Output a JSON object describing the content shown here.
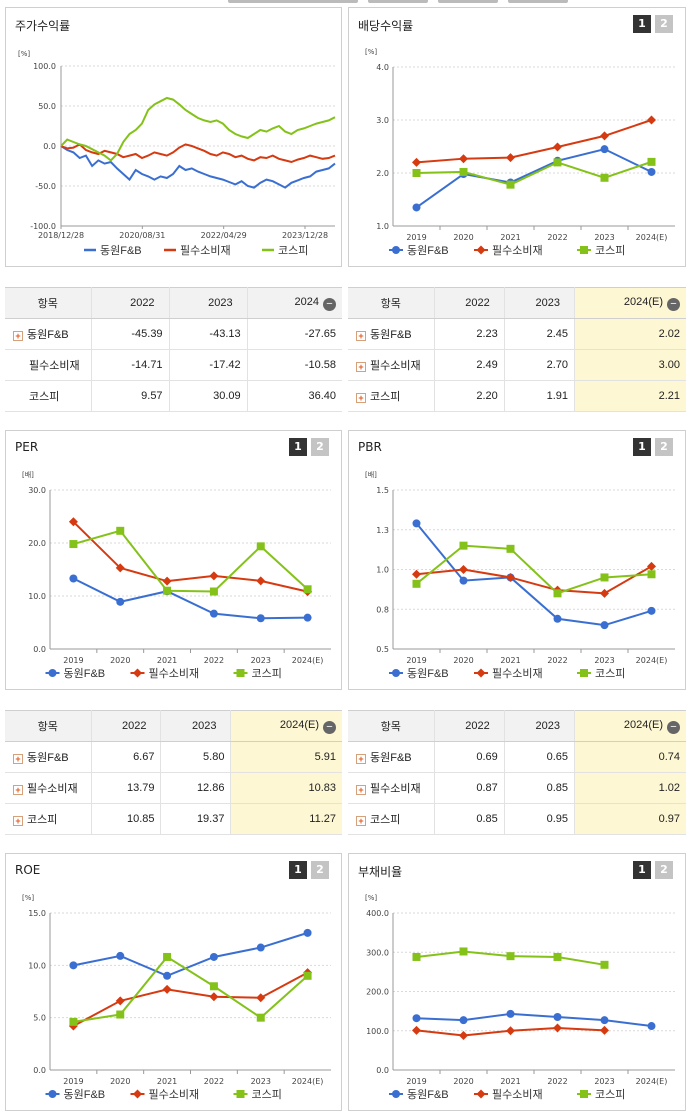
{
  "legend": {
    "company": "동원F&B",
    "industry": "필수소비재",
    "index": "코스피"
  },
  "colors": {
    "company": "#3a6fd1",
    "industry": "#d63a10",
    "index": "#84c21a"
  },
  "buttons": {
    "b1": "1",
    "b2": "2"
  },
  "table_header_name": "항목",
  "return_panel": {
    "title": "주가수익률",
    "table": {
      "columns": [
        "2022",
        "2023",
        "2024"
      ],
      "rows": [
        {
          "name": "동원F&B",
          "values": [
            "-45.39",
            "-43.13",
            "-27.65"
          ]
        },
        {
          "name": "필수소비재",
          "values": [
            "-14.71",
            "-17.42",
            "-10.58"
          ]
        },
        {
          "name": "코스피",
          "values": [
            "9.57",
            "30.09",
            "36.40"
          ]
        }
      ]
    }
  },
  "dividend_panel": {
    "title": "배당수익률",
    "table": {
      "columns": [
        "2022",
        "2023",
        "2024(E)"
      ],
      "rows": [
        {
          "name": "동원F&B",
          "values": [
            "2.23",
            "2.45",
            "2.02"
          ]
        },
        {
          "name": "필수소비재",
          "values": [
            "2.49",
            "2.70",
            "3.00"
          ]
        },
        {
          "name": "코스피",
          "values": [
            "2.20",
            "1.91",
            "2.21"
          ]
        }
      ]
    }
  },
  "per_panel": {
    "title": "PER",
    "table": {
      "columns": [
        "2022",
        "2023",
        "2024(E)"
      ],
      "rows": [
        {
          "name": "동원F&B",
          "values": [
            "6.67",
            "5.80",
            "5.91"
          ]
        },
        {
          "name": "필수소비재",
          "values": [
            "13.79",
            "12.86",
            "10.83"
          ]
        },
        {
          "name": "코스피",
          "values": [
            "10.85",
            "19.37",
            "11.27"
          ]
        }
      ]
    }
  },
  "pbr_panel": {
    "title": "PBR",
    "table": {
      "columns": [
        "2022",
        "2023",
        "2024(E)"
      ],
      "rows": [
        {
          "name": "동원F&B",
          "values": [
            "0.69",
            "0.65",
            "0.74"
          ]
        },
        {
          "name": "필수소비재",
          "values": [
            "0.87",
            "0.85",
            "1.02"
          ]
        },
        {
          "name": "코스피",
          "values": [
            "0.85",
            "0.95",
            "0.97"
          ]
        }
      ]
    }
  },
  "roe_panel": {
    "title": "ROE"
  },
  "debt_panel": {
    "title": "부채비율"
  },
  "chart_data": [
    {
      "id": "return",
      "type": "line",
      "title": "주가수익률",
      "unit": "[%]",
      "yticks": [
        "100.0",
        "50.0",
        "0.0",
        "-50.0",
        "-100.0"
      ],
      "ylim": [
        -100,
        100
      ],
      "xticks": [
        "2018/12/28",
        "2020/08/31",
        "2022/04/29",
        "2023/12/28"
      ],
      "series": [
        {
          "name": "동원F&B",
          "values": [
            0,
            -5,
            -8,
            -15,
            -12,
            -25,
            -18,
            -22,
            -20,
            -28,
            -35,
            -42,
            -30,
            -35,
            -38,
            -42,
            -38,
            -40,
            -35,
            -25,
            -30,
            -28,
            -32,
            -35,
            -38,
            -40,
            -42,
            -45,
            -48,
            -44,
            -50,
            -52,
            -46,
            -42,
            -44,
            -48,
            -52,
            -46,
            -43,
            -40,
            -38,
            -32,
            -30,
            -28,
            -22
          ]
        },
        {
          "name": "필수소비재",
          "values": [
            0,
            -3,
            -2,
            2,
            -5,
            -8,
            -10,
            -6,
            -8,
            -10,
            -14,
            -12,
            -10,
            -15,
            -12,
            -8,
            -10,
            -12,
            -8,
            -2,
            2,
            0,
            -3,
            -6,
            -10,
            -12,
            -8,
            -10,
            -14,
            -12,
            -16,
            -18,
            -14,
            -15,
            -12,
            -16,
            -18,
            -20,
            -17,
            -15,
            -12,
            -14,
            -16,
            -15,
            -12
          ]
        },
        {
          "name": "코스피",
          "values": [
            0,
            8,
            5,
            2,
            0,
            -4,
            -8,
            -12,
            -18,
            -10,
            5,
            15,
            20,
            28,
            45,
            52,
            56,
            60,
            58,
            52,
            45,
            40,
            35,
            32,
            30,
            32,
            28,
            20,
            15,
            12,
            10,
            15,
            20,
            18,
            22,
            25,
            18,
            15,
            20,
            22,
            25,
            28,
            30,
            32,
            36
          ]
        }
      ]
    },
    {
      "id": "dividend",
      "type": "line",
      "title": "배당수익률",
      "unit": "[%]",
      "x": [
        "2019",
        "2020",
        "2021",
        "2022",
        "2023",
        "2024(E)"
      ],
      "yticks": [
        "4.0",
        "3.0",
        "2.0",
        "1.0"
      ],
      "ylim": [
        1,
        4
      ],
      "series": [
        {
          "name": "동원F&B",
          "values": [
            1.35,
            1.98,
            1.82,
            2.23,
            2.45,
            2.02
          ]
        },
        {
          "name": "필수소비재",
          "values": [
            2.2,
            2.27,
            2.29,
            2.49,
            2.7,
            3.0
          ]
        },
        {
          "name": "코스피",
          "values": [
            2.0,
            2.02,
            1.78,
            2.2,
            1.91,
            2.21
          ]
        }
      ]
    },
    {
      "id": "per",
      "type": "line",
      "title": "PER",
      "unit": "[배]",
      "x": [
        "2019",
        "2020",
        "2021",
        "2022",
        "2023",
        "2024(E)"
      ],
      "yticks": [
        "30.0",
        "20.0",
        "10.0",
        "0.0"
      ],
      "ylim": [
        0,
        30
      ],
      "series": [
        {
          "name": "동원F&B",
          "values": [
            13.3,
            8.9,
            10.9,
            6.67,
            5.8,
            5.91
          ]
        },
        {
          "name": "필수소비재",
          "values": [
            24.0,
            15.3,
            12.8,
            13.79,
            12.86,
            10.83
          ]
        },
        {
          "name": "코스피",
          "values": [
            19.8,
            22.3,
            11.0,
            10.85,
            19.37,
            11.27
          ]
        }
      ]
    },
    {
      "id": "pbr",
      "type": "line",
      "title": "PBR",
      "unit": "[배]",
      "x": [
        "2019",
        "2020",
        "2021",
        "2022",
        "2023",
        "2024(E)"
      ],
      "yticks": [
        "1.5",
        "1.3",
        "1.0",
        "0.8",
        "0.5"
      ],
      "ylim": [
        0.5,
        1.5
      ],
      "series": [
        {
          "name": "동원F&B",
          "values": [
            1.29,
            0.93,
            0.95,
            0.69,
            0.65,
            0.74
          ]
        },
        {
          "name": "필수소비재",
          "values": [
            0.97,
            1.0,
            0.95,
            0.87,
            0.85,
            1.02
          ]
        },
        {
          "name": "코스피",
          "values": [
            0.91,
            1.15,
            1.13,
            0.85,
            0.95,
            0.97
          ]
        }
      ]
    },
    {
      "id": "roe",
      "type": "line",
      "title": "ROE",
      "unit": "[%]",
      "x": [
        "2019",
        "2020",
        "2021",
        "2022",
        "2023",
        "2024(E)"
      ],
      "yticks": [
        "15.0",
        "10.0",
        "5.0",
        "0.0"
      ],
      "ylim": [
        0,
        15
      ],
      "series": [
        {
          "name": "동원F&B",
          "values": [
            10.0,
            10.9,
            9.0,
            10.8,
            11.7,
            13.1
          ]
        },
        {
          "name": "필수소비재",
          "values": [
            4.2,
            6.6,
            7.7,
            7.0,
            6.9,
            9.3
          ]
        },
        {
          "name": "코스피",
          "values": [
            4.6,
            5.3,
            10.8,
            8.0,
            5.0,
            9.0
          ]
        }
      ]
    },
    {
      "id": "debt",
      "type": "line",
      "title": "부채비율",
      "unit": "[%]",
      "x": [
        "2019",
        "2020",
        "2021",
        "2022",
        "2023",
        "2024(E)"
      ],
      "yticks": [
        "400.0",
        "300.0",
        "200.0",
        "100.0",
        "0.0"
      ],
      "ylim": [
        0,
        400
      ],
      "series": [
        {
          "name": "동원F&B",
          "values": [
            132,
            127,
            143,
            135,
            127,
            112
          ]
        },
        {
          "name": "필수소비재",
          "values": [
            101,
            88,
            100,
            107,
            101,
            null
          ]
        },
        {
          "name": "코스피",
          "values": [
            288,
            302,
            290,
            288,
            268,
            null
          ]
        }
      ]
    }
  ]
}
